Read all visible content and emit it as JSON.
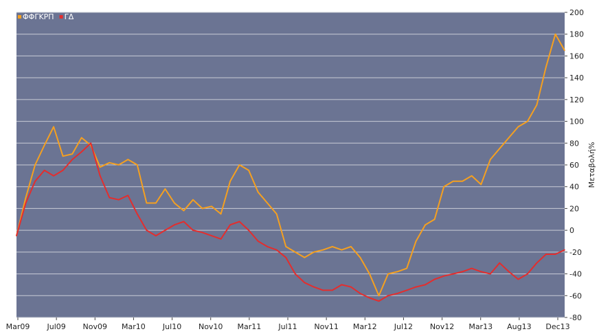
{
  "chart_data": {
    "type": "line",
    "ylabel": "Μεταβολή%",
    "ylim": [
      -80,
      200
    ],
    "yticks": [
      200,
      180,
      160,
      140,
      120,
      100,
      80,
      60,
      40,
      20,
      0,
      -20,
      -40,
      -60,
      -80
    ],
    "y_axis_side": "right",
    "grid": true,
    "legend_position": "top-left",
    "x_tick_labels": [
      "Mar09",
      "Jul09",
      "Nov09",
      "Mar10",
      "Jul10",
      "Nov10",
      "Mar11",
      "Jul11",
      "Nov11",
      "Mar12",
      "Jul12",
      "Nov12",
      "Mar13",
      "Aug13",
      "Dec13"
    ],
    "x": [
      "Mar09",
      "Apr09",
      "May09",
      "Jun09",
      "Jul09",
      "Aug09",
      "Sep09",
      "Oct09",
      "Nov09",
      "Dec09",
      "Jan10",
      "Feb10",
      "Mar10",
      "Apr10",
      "May10",
      "Jun10",
      "Jul10",
      "Aug10",
      "Sep10",
      "Oct10",
      "Nov10",
      "Dec10",
      "Jan11",
      "Feb11",
      "Mar11",
      "Apr11",
      "May11",
      "Jun11",
      "Jul11",
      "Aug11",
      "Sep11",
      "Oct11",
      "Nov11",
      "Dec11",
      "Jan12",
      "Feb12",
      "Mar12",
      "Apr12",
      "May12",
      "Jun12",
      "Jul12",
      "Aug12",
      "Sep12",
      "Oct12",
      "Nov12",
      "Dec12",
      "Jan13",
      "Feb13",
      "Mar13",
      "Apr13",
      "May13",
      "Jun13",
      "Jul13",
      "Aug13",
      "Sep13",
      "Oct13",
      "Nov13",
      "Dec13",
      "Jan14",
      "Feb14"
    ],
    "colors": {
      "plot_background": "#6b7493",
      "grid": "#c9ccd6"
    },
    "series": [
      {
        "name": "ΦΦΓΚΡΠ",
        "color": "#f5a020",
        "values": [
          -5,
          30,
          60,
          78,
          95,
          68,
          70,
          85,
          78,
          58,
          62,
          60,
          65,
          60,
          25,
          25,
          38,
          25,
          18,
          28,
          20,
          22,
          15,
          45,
          60,
          55,
          35,
          25,
          15,
          -15,
          -20,
          -25,
          -20,
          -18,
          -15,
          -18,
          -15,
          -25,
          -40,
          -60,
          -40,
          -38,
          -35,
          -10,
          5,
          10,
          40,
          45,
          45,
          50,
          42,
          65,
          75,
          85,
          95,
          100,
          115,
          150,
          180,
          165
        ]
      },
      {
        "name": "ΓΔ",
        "color": "#e42d2d",
        "values": [
          -5,
          25,
          45,
          55,
          50,
          55,
          65,
          72,
          80,
          50,
          30,
          28,
          32,
          15,
          0,
          -5,
          0,
          5,
          8,
          0,
          -2,
          -5,
          -8,
          5,
          8,
          0,
          -10,
          -15,
          -18,
          -25,
          -40,
          -48,
          -52,
          -55,
          -55,
          -50,
          -52,
          -58,
          -62,
          -65,
          -60,
          -58,
          -55,
          -52,
          -50,
          -45,
          -42,
          -40,
          -38,
          -35,
          -38,
          -40,
          -30,
          -38,
          -45,
          -40,
          -30,
          -22,
          -22,
          -18
        ]
      }
    ]
  }
}
